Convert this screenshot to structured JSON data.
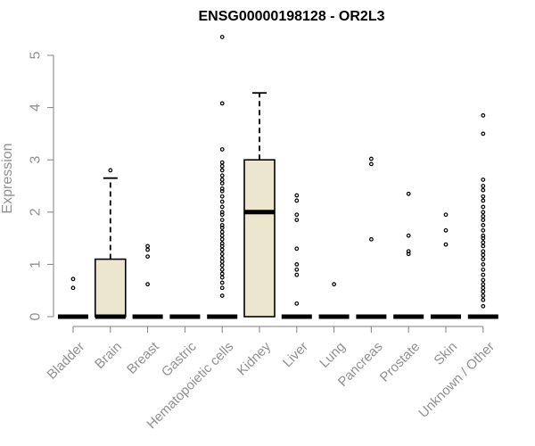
{
  "chart_data": {
    "type": "boxplot",
    "title": "ENSG00000198128 - OR2L3",
    "xlabel": "",
    "ylabel": "Expression",
    "ylim": [
      0,
      5.3
    ],
    "yticks": [
      0,
      1,
      2,
      3,
      4,
      5
    ],
    "grid": false,
    "colors": {
      "box_fill": "#ede6ce",
      "axis": "#808080",
      "label": "#909090",
      "title": "#000000"
    },
    "categories": [
      "Bladder",
      "Brain",
      "Breast",
      "Gastric",
      "Hematopoietic cells",
      "Kidney",
      "Liver",
      "Lung",
      "Pancreas",
      "Prostate",
      "Skin",
      "Unknown / Other"
    ],
    "boxes": [
      {
        "name": "Bladder",
        "q1": 0,
        "median": 0,
        "q3": 0,
        "whisker_high": 0,
        "outliers": [
          0.72,
          0.55
        ]
      },
      {
        "name": "Brain",
        "q1": 0,
        "median": 0,
        "q3": 1.1,
        "whisker_high": 2.65,
        "outliers": [
          2.8
        ]
      },
      {
        "name": "Breast",
        "q1": 0,
        "median": 0,
        "q3": 0,
        "whisker_high": 0,
        "outliers": [
          1.35,
          1.28,
          1.15,
          0.62
        ]
      },
      {
        "name": "Gastric",
        "q1": 0,
        "median": 0,
        "q3": 0,
        "whisker_high": 0,
        "outliers": []
      },
      {
        "name": "Hematopoietic cells",
        "q1": 0,
        "median": 0,
        "q3": 0,
        "whisker_high": 0,
        "outliers": [
          5.35,
          4.08,
          3.2,
          2.95,
          2.88,
          2.8,
          2.7,
          2.62,
          2.55,
          2.45,
          2.4,
          2.3,
          2.2,
          2.1,
          2.0,
          1.95,
          1.85,
          1.75,
          1.7,
          1.62,
          1.55,
          1.48,
          1.4,
          1.35,
          1.28,
          1.2,
          1.12,
          1.05,
          0.98,
          0.9,
          0.82,
          0.75,
          0.65,
          0.55,
          0.4
        ]
      },
      {
        "name": "Kidney",
        "q1": 0,
        "median": 2.0,
        "q3": 3.0,
        "whisker_high": 4.28,
        "outliers": []
      },
      {
        "name": "Liver",
        "q1": 0,
        "median": 0,
        "q3": 0,
        "whisker_high": 0,
        "outliers": [
          2.32,
          2.22,
          1.95,
          1.85,
          1.3,
          1.0,
          0.9,
          0.8,
          0.25
        ]
      },
      {
        "name": "Lung",
        "q1": 0,
        "median": 0,
        "q3": 0,
        "whisker_high": 0,
        "outliers": [
          0.62
        ]
      },
      {
        "name": "Pancreas",
        "q1": 0,
        "median": 0,
        "q3": 0,
        "whisker_high": 0,
        "outliers": [
          3.02,
          2.92,
          1.48
        ]
      },
      {
        "name": "Prostate",
        "q1": 0,
        "median": 0,
        "q3": 0,
        "whisker_high": 0,
        "outliers": [
          2.35,
          1.55,
          1.25,
          1.2
        ]
      },
      {
        "name": "Skin",
        "q1": 0,
        "median": 0,
        "q3": 0,
        "whisker_high": 0,
        "outliers": [
          1.95,
          1.65,
          1.38
        ]
      },
      {
        "name": "Unknown / Other",
        "q1": 0,
        "median": 0,
        "q3": 0,
        "whisker_high": 0,
        "outliers": [
          3.85,
          3.5,
          2.62,
          2.5,
          2.42,
          2.3,
          2.22,
          2.1,
          2.0,
          1.92,
          1.85,
          1.75,
          1.65,
          1.55,
          1.5,
          1.42,
          1.35,
          1.25,
          1.18,
          1.1,
          1.0,
          0.9,
          0.8,
          0.7,
          0.62,
          0.55,
          0.48,
          0.4,
          0.32,
          0.2
        ]
      }
    ]
  }
}
